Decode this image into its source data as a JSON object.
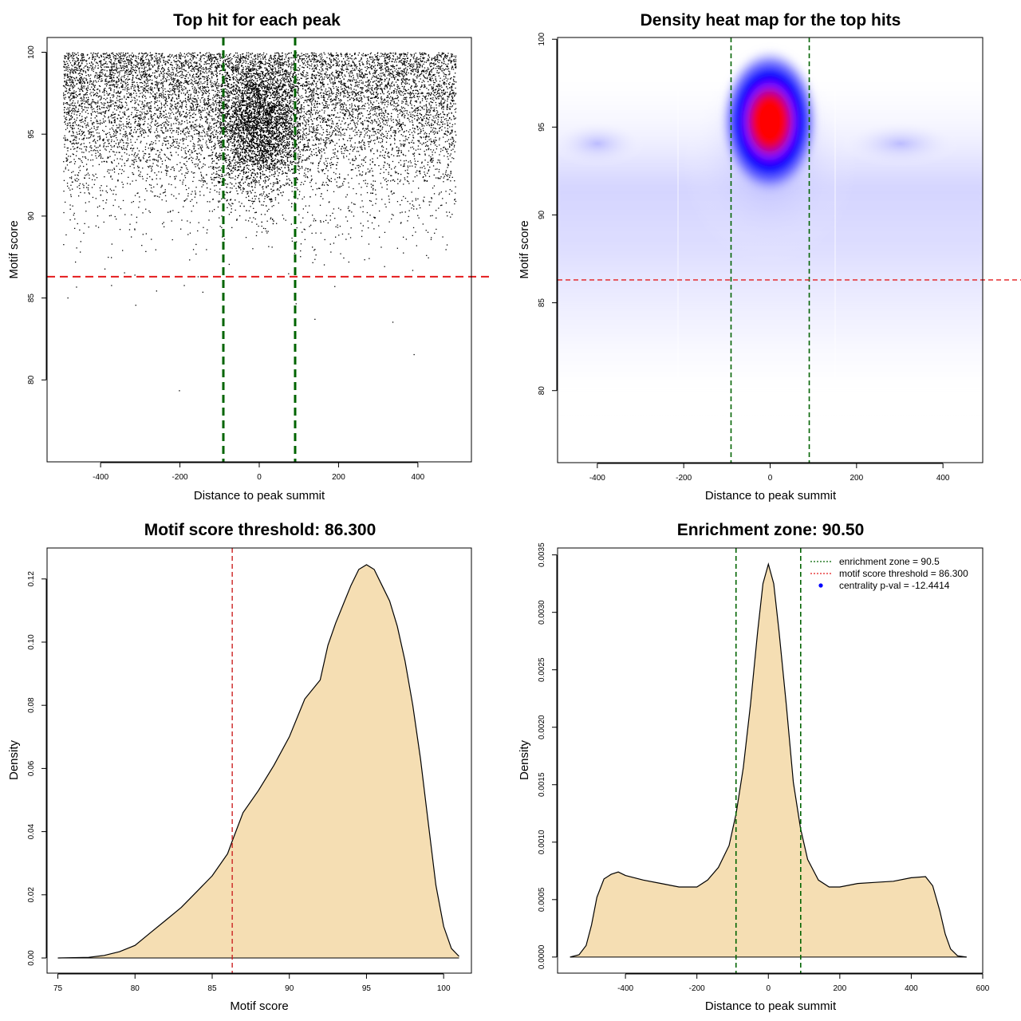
{
  "chart_data": [
    {
      "type": "scatter",
      "title": "Top hit for each peak",
      "xlabel": "Distance to peak summit",
      "ylabel": "Motif score",
      "xlim": [
        -535,
        535
      ],
      "ylim": [
        75,
        100.9
      ],
      "xticks": [
        -400,
        -200,
        0,
        200,
        400
      ],
      "yticks": [
        80,
        85,
        90,
        95,
        100
      ],
      "xtick_labels": [
        "-400",
        "-200",
        "0",
        "200",
        "400"
      ],
      "ytick_labels": [
        "80",
        "85",
        "90",
        "95",
        "100"
      ],
      "vlines": [
        -90.5,
        90.5
      ],
      "hline": 86.3,
      "colors": {
        "points": "#000000",
        "vlines": "#006400",
        "hline": "#e41a1c"
      }
    },
    {
      "type": "heatmap",
      "title": "Density heat map for the top hits",
      "xlabel": "Distance to peak summit",
      "ylabel": "Motif score",
      "xlim": [
        -492,
        492
      ],
      "ylim": [
        75.9,
        100.1
      ],
      "xticks": [
        -400,
        -200,
        0,
        200,
        400
      ],
      "yticks": [
        80,
        85,
        90,
        95,
        100
      ],
      "xtick_labels": [
        "-400",
        "-200",
        "0",
        "200",
        "400"
      ],
      "ytick_labels": [
        "80",
        "85",
        "90",
        "95",
        "100"
      ],
      "vlines": [
        -90.5,
        90.5
      ],
      "hline": 86.3,
      "colors": {
        "low": "#ffffff",
        "mid": "#0000ff",
        "high": "#ff0000",
        "vlines": "#006400",
        "hline": "#e41a1c"
      }
    },
    {
      "type": "area",
      "title": "Motif score threshold: 86.300",
      "xlabel": "Motif score",
      "ylabel": "Density",
      "xlim": [
        74.3,
        101.8
      ],
      "ylim": [
        -0.0048,
        0.1298
      ],
      "xticks": [
        75,
        80,
        85,
        90,
        95,
        100
      ],
      "yticks": [
        0,
        0.02,
        0.04,
        0.06,
        0.08,
        0.1,
        0.12
      ],
      "xtick_labels": [
        "75",
        "80",
        "85",
        "90",
        "95",
        "100"
      ],
      "ytick_labels": [
        "0.00",
        "0.02",
        "0.04",
        "0.06",
        "0.08",
        "0.10",
        "0.12"
      ],
      "x": [
        75,
        77,
        78,
        79,
        80,
        81,
        82,
        83,
        84,
        85,
        86,
        86.3,
        87,
        88,
        89,
        90,
        91,
        92,
        92.5,
        93,
        93.5,
        94,
        94.5,
        95,
        95.5,
        96,
        96.5,
        97,
        97.5,
        98,
        98.5,
        99,
        99.5,
        100,
        100.5,
        101
      ],
      "y": [
        0,
        0.0002,
        0.0008,
        0.002,
        0.004,
        0.008,
        0.012,
        0.016,
        0.021,
        0.026,
        0.033,
        0.037,
        0.046,
        0.053,
        0.061,
        0.07,
        0.082,
        0.088,
        0.099,
        0.106,
        0.112,
        0.118,
        0.123,
        0.1245,
        0.123,
        0.118,
        0.113,
        0.105,
        0.094,
        0.08,
        0.063,
        0.043,
        0.023,
        0.01,
        0.003,
        0.0005
      ],
      "vline": 86.3,
      "colors": {
        "fill": "#f5deb3",
        "line": "#000000",
        "vline": "#cc2222"
      }
    },
    {
      "type": "area",
      "title": "Enrichment zone: 90.50",
      "xlabel": "Distance to peak summit",
      "ylabel": "Density",
      "xlim": [
        -590,
        600
      ],
      "ylim": [
        -0.00014,
        0.00356
      ],
      "xticks": [
        -400,
        -200,
        0,
        200,
        400,
        600
      ],
      "yticks": [
        0,
        0.0005,
        0.001,
        0.0015,
        0.002,
        0.0025,
        0.003,
        0.0035
      ],
      "xtick_labels": [
        "-400",
        "-200",
        "0",
        "200",
        "400",
        "600"
      ],
      "ytick_labels": [
        "0.0000",
        "0.0005",
        "0.0010",
        "0.0015",
        "0.0020",
        "0.0025",
        "0.0030",
        "0.0035"
      ],
      "x": [
        -555,
        -530,
        -510,
        -495,
        -480,
        -460,
        -440,
        -420,
        -400,
        -350,
        -300,
        -250,
        -200,
        -170,
        -140,
        -110,
        -90,
        -70,
        -50,
        -30,
        -15,
        0,
        15,
        30,
        50,
        70,
        90,
        110,
        140,
        170,
        200,
        250,
        300,
        350,
        400,
        440,
        460,
        480,
        495,
        510,
        530,
        555
      ],
      "y": [
        0,
        2e-05,
        0.0001,
        0.00028,
        0.00052,
        0.00068,
        0.00072,
        0.00074,
        0.00071,
        0.00067,
        0.00064,
        0.00061,
        0.00061,
        0.00067,
        0.00078,
        0.00097,
        0.00125,
        0.00165,
        0.0022,
        0.00283,
        0.00325,
        0.00342,
        0.00325,
        0.00283,
        0.0022,
        0.00152,
        0.00112,
        0.00085,
        0.00067,
        0.00061,
        0.00061,
        0.00064,
        0.00065,
        0.00066,
        0.00069,
        0.0007,
        0.00062,
        0.0004,
        0.0002,
        7e-05,
        1e-05,
        0
      ],
      "vlines": [
        -90.5,
        90.5
      ],
      "legend": {
        "position": "top-right",
        "entries": [
          {
            "label": "enrichment zone = 90.5",
            "style": "dotted-line",
            "color": "#006400"
          },
          {
            "label": "motif score threshold = 86.300",
            "style": "dotted-line",
            "color": "#e41a1c"
          },
          {
            "label": "centrality p-val = -12.4414",
            "style": "point",
            "color": "#0000ff"
          }
        ]
      },
      "colors": {
        "fill": "#f5deb3",
        "line": "#000000",
        "vlines": "#006400"
      }
    }
  ]
}
